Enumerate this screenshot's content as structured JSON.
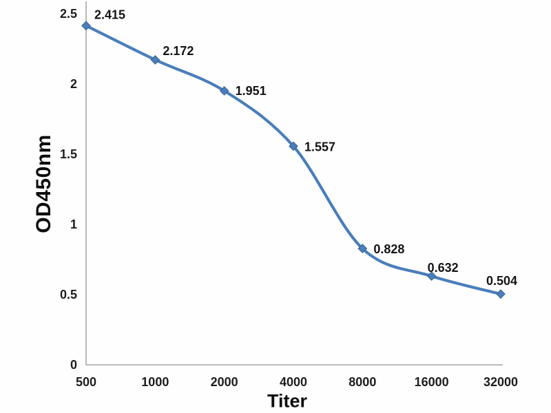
{
  "chart_data": {
    "type": "line",
    "title": "",
    "xlabel": "Titer",
    "ylabel": "OD450nm",
    "x": [
      500,
      1000,
      2000,
      4000,
      8000,
      16000,
      32000
    ],
    "x_ticklabels": [
      "500",
      "1000",
      "2000",
      "4000",
      "8000",
      "16000",
      "32000"
    ],
    "series": [
      {
        "name": "OD450nm",
        "values": [
          2.415,
          2.172,
          1.951,
          1.557,
          0.828,
          0.632,
          0.504
        ]
      }
    ],
    "point_labels": [
      "2.415",
      "2.172",
      "1.951",
      "1.557",
      "0.828",
      "0.632",
      "0.504"
    ],
    "y_ticks": [
      0,
      0.5,
      1,
      1.5,
      2,
      2.5
    ],
    "y_ticklabels": [
      "0",
      "0.5",
      "1",
      "1.5",
      "2",
      "2.5"
    ],
    "ylim": [
      0,
      2.5
    ],
    "x_axis_note": "titer dilution values doubling, equal categorical spacing",
    "grid": false,
    "legend": "none",
    "line_smooth": true,
    "marker": "diamond",
    "colors": {
      "series": "#4a7ebb",
      "marker_edge": "#3a668f",
      "axis": "#a6a6a6",
      "text": "#1c1c1c",
      "background": "#fefefe"
    }
  }
}
